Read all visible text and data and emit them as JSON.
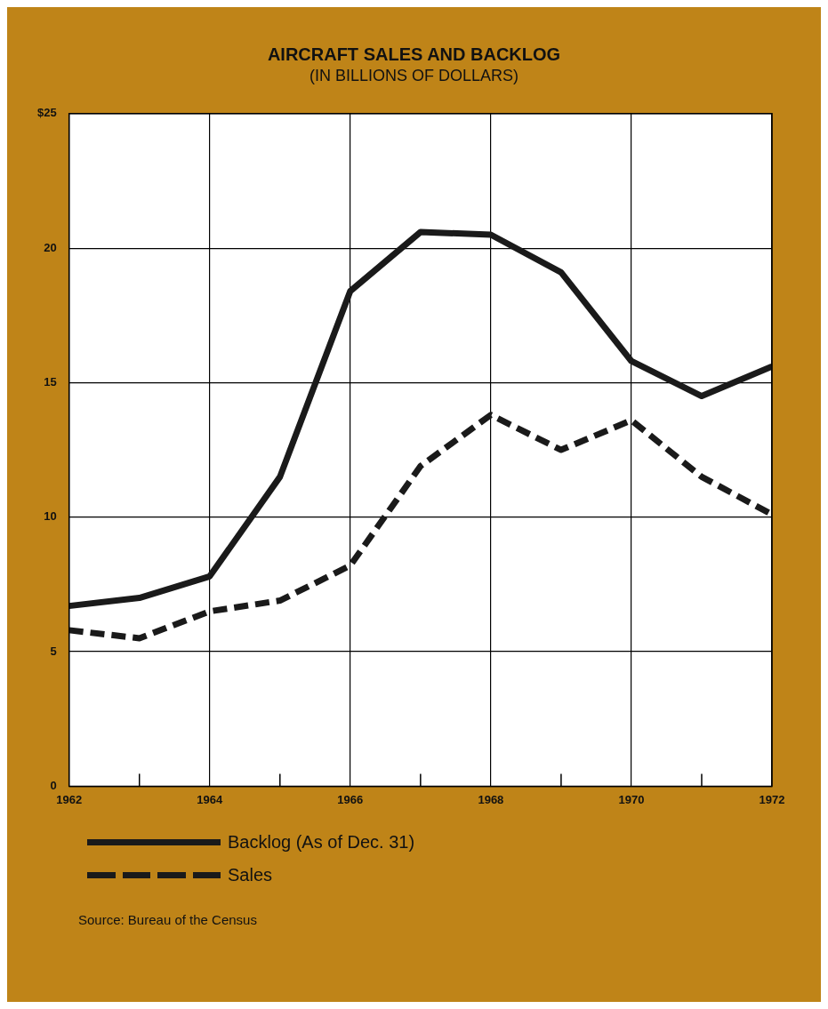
{
  "chart_data": {
    "type": "line",
    "title": "AIRCRAFT SALES AND BACKLOG",
    "subtitle": "(IN BILLIONS OF DOLLARS)",
    "x": [
      1962,
      1963,
      1964,
      1965,
      1966,
      1967,
      1968,
      1969,
      1970,
      1971,
      1972
    ],
    "series": [
      {
        "name": "Backlog (As of Dec. 31)",
        "color": "#1a1a1a",
        "line_style": "solid",
        "values": [
          6.7,
          7.0,
          7.8,
          11.5,
          18.4,
          20.6,
          20.5,
          19.1,
          15.8,
          14.5,
          15.6
        ]
      },
      {
        "name": "Sales",
        "color": "#1a1a1a",
        "line_style": "dashed",
        "values": [
          5.8,
          5.5,
          6.5,
          6.9,
          8.2,
          11.9,
          13.8,
          12.5,
          13.6,
          11.5,
          10.1
        ]
      }
    ],
    "xlim": [
      1962,
      1972
    ],
    "xticks": [
      1962,
      {
        "value": 1963,
        "label": null
      },
      1964,
      {
        "value": 1965,
        "label": null
      },
      1966,
      {
        "value": 1967,
        "label": null
      },
      1968,
      {
        "value": 1969,
        "label": null
      },
      1970,
      {
        "value": 1971,
        "label": null
      },
      1972
    ],
    "ylim": [
      0,
      25
    ],
    "yticks": [
      0,
      5,
      10,
      15,
      20,
      {
        "value": 25,
        "label": "$25"
      }
    ],
    "grid": true,
    "legend": "bottom",
    "marker": "none",
    "annotations": [
      "Source: Bureau of the Census"
    ]
  }
}
